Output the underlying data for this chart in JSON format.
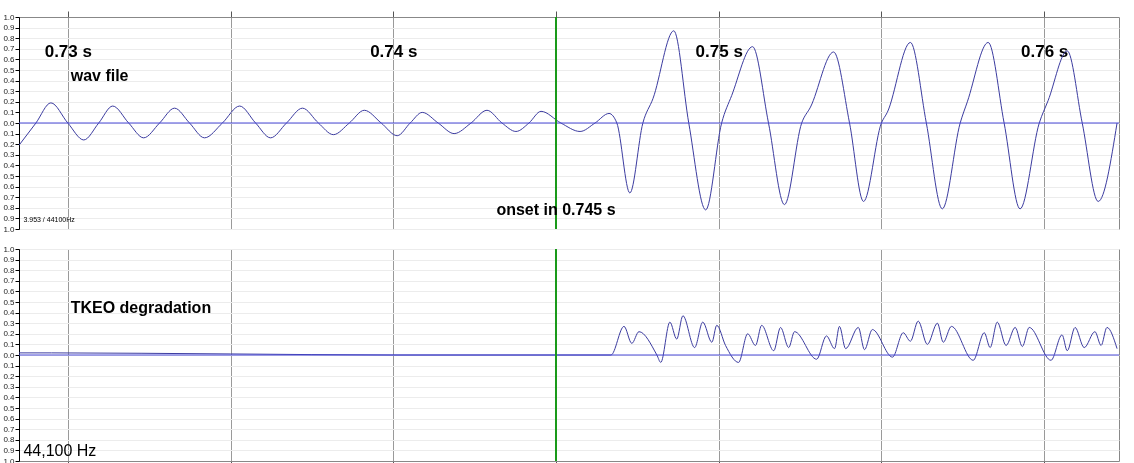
{
  "chart_data": [
    {
      "type": "line",
      "xlim": [
        0.7285,
        0.7623
      ],
      "ylim": [
        -1,
        1
      ],
      "xticks": [
        {
          "value": 0.73,
          "label": "0.73 s"
        },
        {
          "value": 0.735,
          "label": null
        },
        {
          "value": 0.74,
          "label": "0.74 s"
        },
        {
          "value": 0.745,
          "label": null
        },
        {
          "value": 0.75,
          "label": "0.75 s"
        },
        {
          "value": 0.755,
          "label": null
        },
        {
          "value": 0.76,
          "label": "0.76 s"
        }
      ],
      "yticks": [
        {
          "value": -1,
          "label": "1.0"
        },
        {
          "value": -0.9,
          "label": "0.9"
        },
        {
          "value": -0.8,
          "label": "0.8"
        },
        {
          "value": -0.7,
          "label": "0.7"
        },
        {
          "value": -0.6,
          "label": "0.6"
        },
        {
          "value": -0.5,
          "label": "0.5"
        },
        {
          "value": -0.4,
          "label": "0.4"
        },
        {
          "value": -0.3,
          "label": "0.3"
        },
        {
          "value": -0.2,
          "label": "0.2"
        },
        {
          "value": -0.1,
          "label": "0.1"
        },
        {
          "value": 0,
          "label": "0.0"
        },
        0.1,
        0.2,
        0.3,
        0.4,
        0.5,
        0.6,
        0.7,
        0.8,
        0.9,
        {
          "value": 1,
          "label": "1.0"
        }
      ],
      "grid": true,
      "series": [
        {
          "name": "wav file",
          "color": "#3c3ca0",
          "x": [
            0.7285,
            0.72902,
            0.72948,
            0.73,
            0.73049,
            0.73095,
            0.73138,
            0.73187,
            0.73233,
            0.73282,
            0.73328,
            0.73374,
            0.7342,
            0.73475,
            0.73528,
            0.73577,
            0.73623,
            0.73672,
            0.73721,
            0.7377,
            0.73816,
            0.73865,
            0.73911,
            0.73963,
            0.74012,
            0.74052,
            0.74089,
            0.74138,
            0.74187,
            0.74239,
            0.74288,
            0.74334,
            0.74377,
            0.74417,
            0.74454,
            0.74515,
            0.74574,
            0.7462,
            0.74663,
            0.74687,
            0.74727,
            0.74767,
            0.74798,
            0.74862,
            0.74908,
            0.7496,
            0.75009,
            0.7504,
            0.75104,
            0.75153,
            0.75202,
            0.75255,
            0.75282,
            0.75353,
            0.75402,
            0.75445,
            0.755,
            0.75518,
            0.75589,
            0.75638,
            0.75687,
            0.75742,
            0.75764,
            0.75828,
            0.75877,
            0.75926,
            0.75985,
            0.76012,
            0.76071,
            0.76117,
            0.76166,
            0.76224
          ],
          "values": [
            -0.21,
            0,
            0.19,
            0,
            -0.16,
            0,
            0.16,
            0,
            -0.14,
            0,
            0.14,
            0,
            -0.14,
            0,
            0.16,
            0,
            -0.14,
            0,
            0.14,
            0,
            -0.11,
            0,
            0.12,
            0,
            -0.12,
            0,
            0.1,
            0,
            -0.1,
            0,
            0.12,
            0,
            -0.08,
            0,
            0.11,
            0,
            -0.08,
            0,
            0.09,
            0,
            -0.66,
            0,
            0.23,
            0.87,
            0,
            -0.82,
            0,
            0.26,
            0.72,
            0,
            -0.77,
            0,
            0.15,
            0.67,
            0,
            -0.74,
            0,
            0.1,
            0.76,
            0,
            -0.81,
            0,
            0.2,
            0.76,
            0,
            -0.81,
            0,
            0.21,
            0.68,
            0,
            -0.74,
            0
          ]
        }
      ],
      "ref_lines": [
        {
          "axis": "y",
          "value": 0,
          "label": null,
          "color": "#4848d8"
        },
        {
          "axis": "x",
          "value": 0.745,
          "label": "onset in 0.745 s",
          "color": "#1a9a1a"
        }
      ],
      "annotations": [
        "3.953 / 44100Hz"
      ]
    },
    {
      "type": "line",
      "xlim": [
        0.7285,
        0.7623
      ],
      "ylim": [
        -1,
        1
      ],
      "tick_labels": "y",
      "xticks": [
        {
          "value": 0.73,
          "label": null
        },
        {
          "value": 0.735,
          "label": null
        },
        {
          "value": 0.74,
          "label": null
        },
        {
          "value": 0.745,
          "label": null
        },
        {
          "value": 0.75,
          "label": null
        },
        {
          "value": 0.755,
          "label": null
        },
        {
          "value": 0.76,
          "label": null
        }
      ],
      "yticks": [
        {
          "value": -1,
          "label": "1.0"
        },
        {
          "value": -0.9,
          "label": "0.9"
        },
        {
          "value": -0.8,
          "label": "0.8"
        },
        {
          "value": -0.7,
          "label": "0.7"
        },
        {
          "value": -0.6,
          "label": "0.6"
        },
        {
          "value": -0.5,
          "label": "0.5"
        },
        {
          "value": -0.4,
          "label": "0.4"
        },
        {
          "value": -0.3,
          "label": "0.3"
        },
        {
          "value": -0.2,
          "label": "0.2"
        },
        {
          "value": -0.1,
          "label": "0.1"
        },
        {
          "value": 0,
          "label": "0.0"
        },
        0.1,
        0.2,
        0.3,
        0.4,
        0.5,
        0.6,
        0.7,
        0.8,
        0.9,
        {
          "value": 1,
          "label": "1.0"
        }
      ],
      "grid": true,
      "series": [
        {
          "name": "TKEO degradation",
          "color": "#3c3ca0",
          "x": [
            0.7285,
            0.7295,
            0.735,
            0.74,
            0.745,
            0.74669,
            0.74709,
            0.74733,
            0.74755,
            0.7481,
            0.74822,
            0.7485,
            0.74871,
            0.7489,
            0.74926,
            0.74951,
            0.74979,
            0.74994,
            0.75021,
            0.75061,
            0.75089,
            0.75113,
            0.75132,
            0.75169,
            0.7519,
            0.75215,
            0.75233,
            0.75301,
            0.75331,
            0.75356,
            0.75371,
            0.7539,
            0.75429,
            0.75448,
            0.75472,
            0.75534,
            0.75567,
            0.75589,
            0.75613,
            0.75641,
            0.75672,
            0.7569,
            0.75715,
            0.75782,
            0.75816,
            0.75834,
            0.75856,
            0.75883,
            0.75911,
            0.75933,
            0.75954,
            0.76021,
            0.76055,
            0.76071,
            0.76095,
            0.76123,
            0.76156,
            0.76175,
            0.76193,
            0.76224
          ],
          "values": [
            0.02,
            0.02,
            0.01,
            0,
            0,
            0,
            0.27,
            0.11,
            0.22,
            0,
            -0.07,
            0.31,
            0.15,
            0.37,
            0.07,
            0.31,
            0.12,
            0.28,
            0.09,
            -0.07,
            0.2,
            0.09,
            0.28,
            0.04,
            0.26,
            0.07,
            0.22,
            -0.04,
            0.18,
            0.06,
            0.27,
            0.06,
            0.26,
            0.05,
            0.24,
            -0.02,
            0.21,
            0.13,
            0.32,
            0.1,
            0.3,
            0.12,
            0.27,
            -0.05,
            0.21,
            0.07,
            0.31,
            0.09,
            0.26,
            0.08,
            0.26,
            -0.05,
            0.19,
            0.04,
            0.26,
            0.07,
            0.22,
            0.09,
            0.26,
            0.06
          ]
        }
      ],
      "ref_lines": [
        {
          "axis": "y",
          "value": 0,
          "label": null,
          "color": "#4848d8"
        },
        {
          "axis": "x",
          "value": 0.745,
          "label": null,
          "color": "#1a9a1a"
        }
      ],
      "annotations": [
        "44,100 Hz"
      ]
    }
  ]
}
